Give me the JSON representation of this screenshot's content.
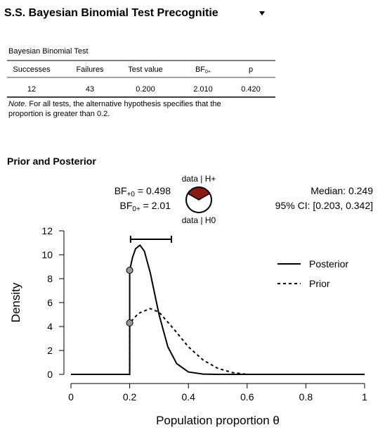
{
  "header": {
    "title": "S.S. Bayesian Binomial Test Precognitie"
  },
  "table": {
    "title": "Bayesian Binomial Test",
    "columns": [
      {
        "text": "Successes"
      },
      {
        "text": "Failures"
      },
      {
        "text": "Test value"
      },
      {
        "text": "BF",
        "sub": "0+"
      },
      {
        "text": "p"
      }
    ],
    "rows": [
      [
        "12",
        "43",
        "0.200",
        "2.010",
        "0.420"
      ]
    ]
  },
  "note": {
    "label": "Note.",
    "lines": [
      " For all tests, the alternative hypothesis specifies that the",
      "proportion is greater than 0.2."
    ]
  },
  "section_title": "Prior and Posterior",
  "chart_data": {
    "type": "line",
    "xlabel": "Population proportion θ",
    "ylabel": "Density",
    "xlim": [
      0,
      1
    ],
    "xticks": [
      0,
      0.2,
      0.4,
      0.6,
      0.8,
      1
    ],
    "ylim": [
      0,
      12
    ],
    "yticks": [
      0,
      2,
      4,
      6,
      8,
      10,
      12
    ],
    "series": [
      {
        "name": "Posterior",
        "color": "#000000",
        "dashed": false,
        "x": [
          0,
          0.2,
          0.2,
          0.21,
          0.22,
          0.235,
          0.25,
          0.27,
          0.3,
          0.33,
          0.36,
          0.4,
          0.45,
          0.5,
          1
        ],
        "values": [
          0,
          0,
          8.7,
          9.8,
          10.5,
          10.8,
          10.3,
          8.5,
          5,
          2.3,
          0.9,
          0.2,
          0.02,
          0,
          0
        ]
      },
      {
        "name": "Prior",
        "color": "#000000",
        "dashed": true,
        "x": [
          0,
          0.2,
          0.2,
          0.23,
          0.27,
          0.3,
          0.35,
          0.4,
          0.45,
          0.5,
          0.55,
          0.6,
          1
        ],
        "values": [
          0,
          0,
          4.3,
          5.1,
          5.5,
          5.2,
          3.8,
          2.3,
          1.2,
          0.5,
          0.15,
          0,
          0
        ]
      }
    ],
    "markers": [
      {
        "x": 0.2,
        "y": 8.7
      },
      {
        "x": 0.2,
        "y": 4.3
      }
    ],
    "ci": [
      0.203,
      0.342
    ],
    "annotations": {
      "bf10": {
        "main": "BF",
        "sub": "+0",
        "rest": " = 0.498"
      },
      "bf01": {
        "main": "BF",
        "sub": "0+",
        "rest": " = 2.01"
      },
      "median": "Median: 0.249",
      "ci_text": "95% CI: [0.203, 0.342]"
    },
    "pie": {
      "labels": [
        "data | H+",
        "data | H0"
      ],
      "values": [
        0.332,
        0.668
      ],
      "colors": [
        "#8b1a10",
        "#ffffff"
      ]
    }
  }
}
